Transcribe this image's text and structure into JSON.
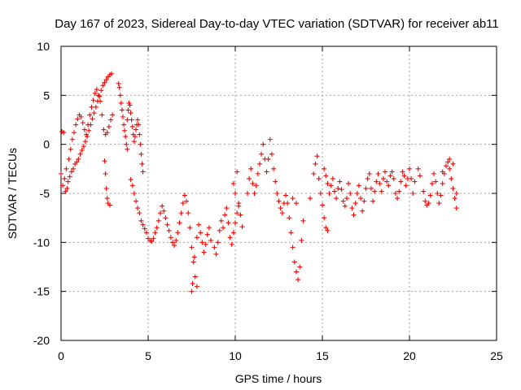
{
  "chart_data": {
    "type": "scatter",
    "title": "Day 167 of 2023, Sidereal Day-to-day VTEC variation (SDTVAR) for receiver ab11",
    "xlabel": "GPS time / hours",
    "ylabel": "SDTVAR / TECUs",
    "xlim": [
      0,
      25
    ],
    "ylim": [
      -20,
      10
    ],
    "xticks": [
      0,
      5,
      10,
      15,
      20,
      25
    ],
    "yticks": [
      -20,
      -15,
      -10,
      -5,
      0,
      5,
      10
    ],
    "grid": true,
    "marker": "+",
    "color": "#ff0000",
    "series": [
      {
        "name": "SDTVAR",
        "points": [
          [
            0.0,
            -3.0
          ],
          [
            0.05,
            1.3
          ],
          [
            0.1,
            -4.2
          ],
          [
            0.15,
            1.2
          ],
          [
            0.2,
            -3.5
          ],
          [
            0.25,
            -4.8
          ],
          [
            0.3,
            -2.5
          ],
          [
            0.35,
            -4.5
          ],
          [
            0.4,
            -3.8
          ],
          [
            0.45,
            -1.5
          ],
          [
            0.5,
            -3.3
          ],
          [
            0.55,
            -0.5
          ],
          [
            0.6,
            -2.8
          ],
          [
            0.65,
            0.5
          ],
          [
            0.7,
            -2.5
          ],
          [
            0.75,
            1.2
          ],
          [
            0.8,
            -2.0
          ],
          [
            0.85,
            2.0
          ],
          [
            0.9,
            -1.8
          ],
          [
            0.95,
            2.6
          ],
          [
            1.0,
            -1.5
          ],
          [
            1.05,
            3.0
          ],
          [
            1.1,
            -1.0
          ],
          [
            1.15,
            2.8
          ],
          [
            1.2,
            -0.6
          ],
          [
            1.25,
            2.2
          ],
          [
            1.3,
            -0.2
          ],
          [
            1.35,
            1.5
          ],
          [
            1.4,
            0.3
          ],
          [
            1.45,
            1.0
          ],
          [
            1.5,
            0.8
          ],
          [
            1.55,
            2.0
          ],
          [
            1.6,
            1.4
          ],
          [
            1.65,
            3.0
          ],
          [
            1.7,
            2.0
          ],
          [
            1.75,
            3.8
          ],
          [
            1.8,
            2.6
          ],
          [
            1.85,
            4.5
          ],
          [
            1.9,
            3.2
          ],
          [
            1.95,
            5.2
          ],
          [
            2.0,
            3.8
          ],
          [
            2.05,
            5.6
          ],
          [
            2.1,
            4.4
          ],
          [
            2.15,
            5.0
          ],
          [
            2.2,
            4.9
          ],
          [
            2.25,
            4.4
          ],
          [
            2.3,
            5.5
          ],
          [
            2.35,
            3.0
          ],
          [
            2.4,
            6.0
          ],
          [
            2.45,
            1.5
          ],
          [
            2.5,
            6.3
          ],
          [
            2.55,
            1.0
          ],
          [
            2.6,
            6.6
          ],
          [
            2.65,
            1.2
          ],
          [
            2.7,
            6.9
          ],
          [
            2.75,
            1.8
          ],
          [
            2.8,
            7.1
          ],
          [
            2.85,
            2.5
          ],
          [
            2.9,
            7.2
          ],
          [
            2.95,
            3.0
          ],
          [
            2.5,
            -1.7
          ],
          [
            2.55,
            -3.0
          ],
          [
            2.6,
            -4.5
          ],
          [
            2.65,
            -5.5
          ],
          [
            2.7,
            -6.0
          ],
          [
            2.8,
            -6.2
          ],
          [
            3.3,
            6.2
          ],
          [
            3.35,
            5.8
          ],
          [
            3.4,
            5.0
          ],
          [
            3.45,
            4.2
          ],
          [
            3.5,
            3.5
          ],
          [
            3.55,
            2.8
          ],
          [
            3.6,
            2.0
          ],
          [
            3.65,
            1.4
          ],
          [
            3.7,
            0.8
          ],
          [
            3.75,
            0.0
          ],
          [
            3.8,
            2.5
          ],
          [
            3.85,
            3.5
          ],
          [
            3.9,
            4.2
          ],
          [
            3.95,
            4.0
          ],
          [
            4.0,
            3.2
          ],
          [
            4.05,
            2.5
          ],
          [
            4.1,
            1.8
          ],
          [
            4.15,
            1.0
          ],
          [
            4.2,
            0.3
          ],
          [
            4.25,
            0.8
          ],
          [
            4.3,
            1.5
          ],
          [
            4.35,
            2.0
          ],
          [
            4.4,
            2.5
          ],
          [
            4.45,
            2.0
          ],
          [
            4.5,
            1.0
          ],
          [
            4.55,
            0.0
          ],
          [
            4.6,
            -1.0
          ],
          [
            4.65,
            -2.0
          ],
          [
            4.7,
            -2.8
          ],
          [
            3.8,
            -0.5
          ],
          [
            4.0,
            -3.6
          ],
          [
            4.1,
            -4.2
          ],
          [
            4.2,
            -5.0
          ],
          [
            4.3,
            -5.8
          ],
          [
            4.4,
            -6.5
          ],
          [
            4.5,
            -7.0
          ],
          [
            4.6,
            -7.8
          ],
          [
            4.7,
            -8.2
          ],
          [
            4.8,
            -8.6
          ],
          [
            4.9,
            -9.0
          ],
          [
            5.0,
            -9.6
          ],
          [
            5.1,
            -9.8
          ],
          [
            5.2,
            -9.9
          ],
          [
            5.3,
            -9.6
          ],
          [
            5.4,
            -9.0
          ],
          [
            5.5,
            -8.5
          ],
          [
            5.6,
            -7.8
          ],
          [
            5.7,
            -7.0
          ],
          [
            5.8,
            -6.3
          ],
          [
            5.9,
            -6.8
          ],
          [
            6.0,
            -7.5
          ],
          [
            6.1,
            -8.2
          ],
          [
            6.2,
            -8.8
          ],
          [
            6.3,
            -9.5
          ],
          [
            6.4,
            -10.0
          ],
          [
            6.5,
            -10.3
          ],
          [
            6.6,
            -9.8
          ],
          [
            6.7,
            -9.0
          ],
          [
            6.8,
            -8.0
          ],
          [
            6.9,
            -7.0
          ],
          [
            7.0,
            -6.0
          ],
          [
            7.1,
            -5.2
          ],
          [
            7.2,
            -5.8
          ],
          [
            7.3,
            -7.0
          ],
          [
            7.4,
            -8.5
          ],
          [
            7.5,
            -10.5
          ],
          [
            7.6,
            -12.0
          ],
          [
            7.7,
            -13.5
          ],
          [
            7.8,
            -14.5
          ],
          [
            7.5,
            -15.0
          ],
          [
            7.55,
            -14.2
          ],
          [
            7.65,
            -11.5
          ],
          [
            7.8,
            -9.5
          ],
          [
            7.9,
            -8.2
          ],
          [
            8.0,
            -9.0
          ],
          [
            8.1,
            -10.0
          ],
          [
            8.2,
            -11.0
          ],
          [
            8.3,
            -10.2
          ],
          [
            8.4,
            -9.2
          ],
          [
            8.5,
            -8.5
          ],
          [
            8.6,
            -9.8
          ],
          [
            8.8,
            -10.5
          ],
          [
            8.9,
            -11.2
          ],
          [
            9.0,
            -10.0
          ],
          [
            9.1,
            -8.8
          ],
          [
            9.2,
            -7.8
          ],
          [
            9.3,
            -8.5
          ],
          [
            9.4,
            -7.2
          ],
          [
            9.5,
            -6.5
          ],
          [
            9.6,
            -8.0
          ],
          [
            9.7,
            -9.5
          ],
          [
            9.8,
            -10.2
          ],
          [
            9.9,
            -9.0
          ],
          [
            10.0,
            -8.0
          ],
          [
            10.1,
            -7.0
          ],
          [
            10.2,
            -6.3
          ],
          [
            10.3,
            -7.2
          ],
          [
            10.4,
            -8.4
          ],
          [
            9.9,
            -4.0
          ],
          [
            10.0,
            -5.0
          ],
          [
            10.1,
            -2.8
          ],
          [
            10.2,
            -6.0
          ],
          [
            10.7,
            -5.0
          ],
          [
            10.8,
            -3.5
          ],
          [
            10.9,
            -2.5
          ],
          [
            11.0,
            -4.0
          ],
          [
            11.1,
            -5.0
          ],
          [
            11.2,
            -4.2
          ],
          [
            11.3,
            -3.0
          ],
          [
            11.4,
            -2.0
          ],
          [
            11.5,
            -1.0
          ],
          [
            11.6,
            0.0
          ],
          [
            11.7,
            -1.5
          ],
          [
            11.8,
            -2.8
          ],
          [
            11.9,
            -1.5
          ],
          [
            12.0,
            0.5
          ],
          [
            12.1,
            -1.0
          ],
          [
            12.2,
            -2.5
          ],
          [
            12.3,
            -3.8
          ],
          [
            12.4,
            -5.0
          ],
          [
            12.5,
            -5.8
          ],
          [
            12.6,
            -6.5
          ],
          [
            12.7,
            -7.0
          ],
          [
            12.8,
            -6.0
          ],
          [
            12.9,
            -5.2
          ],
          [
            13.0,
            -6.0
          ],
          [
            13.1,
            -7.5
          ],
          [
            13.2,
            -9.0
          ],
          [
            13.3,
            -10.5
          ],
          [
            13.4,
            -12.0
          ],
          [
            13.5,
            -13.0
          ],
          [
            13.6,
            -13.8
          ],
          [
            13.7,
            -12.5
          ],
          [
            13.8,
            -9.8
          ],
          [
            13.3,
            -5.5
          ],
          [
            13.5,
            -6.0
          ],
          [
            13.9,
            -7.8
          ],
          [
            14.3,
            -5.5
          ],
          [
            14.5,
            -3.0
          ],
          [
            14.6,
            -2.0
          ],
          [
            14.7,
            -1.2
          ],
          [
            14.8,
            -3.5
          ],
          [
            14.9,
            -5.0
          ],
          [
            15.0,
            -6.2
          ],
          [
            15.1,
            -7.5
          ],
          [
            15.2,
            -8.5
          ],
          [
            15.3,
            -8.8
          ],
          [
            15.1,
            -2.5
          ],
          [
            15.2,
            -3.2
          ],
          [
            15.3,
            -4.0
          ],
          [
            15.4,
            -5.0
          ],
          [
            15.5,
            -4.2
          ],
          [
            15.6,
            -3.5
          ],
          [
            15.7,
            -4.8
          ],
          [
            15.8,
            -5.5
          ],
          [
            15.9,
            -4.5
          ],
          [
            16.0,
            -3.8
          ],
          [
            16.1,
            -4.6
          ],
          [
            16.2,
            -5.8
          ],
          [
            16.3,
            -6.3
          ],
          [
            16.4,
            -5.5
          ],
          [
            16.5,
            -4.0
          ],
          [
            16.6,
            -5.0
          ],
          [
            16.7,
            -6.5
          ],
          [
            16.8,
            -7.2
          ],
          [
            16.9,
            -6.0
          ],
          [
            17.0,
            -5.0
          ],
          [
            17.1,
            -4.2
          ],
          [
            17.2,
            -5.5
          ],
          [
            17.3,
            -6.8
          ],
          [
            17.4,
            -5.8
          ],
          [
            17.5,
            -4.5
          ],
          [
            17.6,
            -3.5
          ],
          [
            17.7,
            -3.0
          ],
          [
            17.8,
            -4.5
          ],
          [
            17.9,
            -5.8
          ],
          [
            18.0,
            -4.8
          ],
          [
            18.1,
            -3.8
          ],
          [
            18.2,
            -3.0
          ],
          [
            18.3,
            -4.0
          ],
          [
            18.4,
            -4.8
          ],
          [
            18.5,
            -3.5
          ],
          [
            18.6,
            -2.8
          ],
          [
            18.7,
            -3.8
          ],
          [
            18.8,
            -4.2
          ],
          [
            18.9,
            -3.2
          ],
          [
            19.0,
            -2.8
          ],
          [
            19.1,
            -3.5
          ],
          [
            19.2,
            -5.0
          ],
          [
            19.3,
            -5.5
          ],
          [
            19.4,
            -4.8
          ],
          [
            19.5,
            -3.8
          ],
          [
            19.6,
            -2.8
          ],
          [
            19.7,
            -3.2
          ],
          [
            19.8,
            -4.2
          ],
          [
            19.9,
            -3.5
          ],
          [
            20.0,
            -2.5
          ],
          [
            20.1,
            -3.5
          ],
          [
            20.2,
            -5.0
          ],
          [
            20.3,
            -3.8
          ],
          [
            20.5,
            -2.5
          ],
          [
            20.6,
            -3.2
          ],
          [
            20.8,
            -4.8
          ],
          [
            20.9,
            -5.8
          ],
          [
            21.0,
            -6.2
          ],
          [
            21.1,
            -6.0
          ],
          [
            21.2,
            -5.2
          ],
          [
            21.3,
            -4.0
          ],
          [
            21.4,
            -3.0
          ],
          [
            21.5,
            -3.8
          ],
          [
            21.6,
            -5.0
          ],
          [
            21.7,
            -6.0
          ],
          [
            21.8,
            -5.2
          ],
          [
            21.9,
            -4.0
          ],
          [
            22.0,
            -3.0
          ],
          [
            22.1,
            -2.2
          ],
          [
            22.2,
            -1.8
          ],
          [
            22.3,
            -2.5
          ],
          [
            22.4,
            -3.5
          ],
          [
            22.5,
            -4.5
          ],
          [
            22.6,
            -5.5
          ],
          [
            22.7,
            -6.5
          ],
          [
            22.7,
            -5.0
          ],
          [
            22.5,
            -2.0
          ],
          [
            22.3,
            -1.5
          ],
          [
            21.9,
            -2.8
          ]
        ]
      }
    ]
  }
}
